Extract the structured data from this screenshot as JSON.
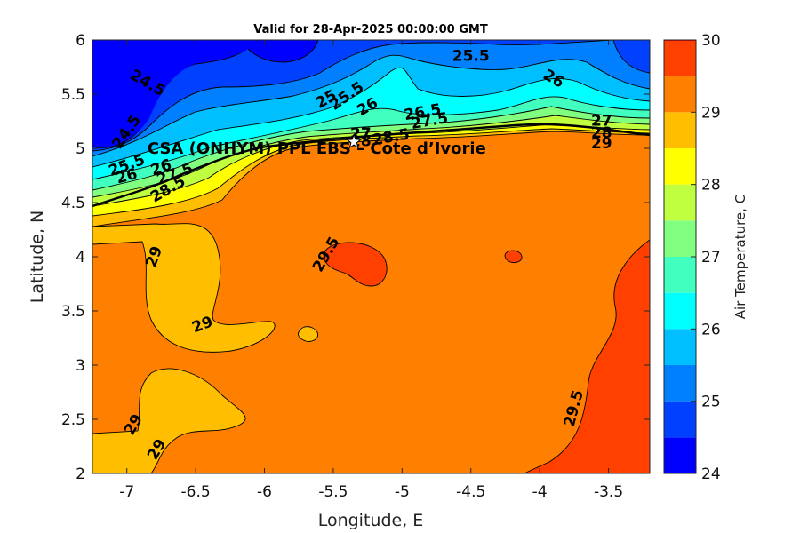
{
  "chart_data": {
    "type": "contour-map",
    "title": "Valid for 28-Apr-2025 00:00:00 GMT",
    "xlabel": "Longitude, E",
    "ylabel": "Latitude, N",
    "xlim": [
      -7.25,
      -3.2
    ],
    "ylim": [
      2,
      6
    ],
    "xticks": [
      -7,
      -6.5,
      -6,
      -5.5,
      -5,
      -4.5,
      -4,
      -3.5
    ],
    "yticks": [
      2,
      2.5,
      3,
      3.5,
      4,
      4.5,
      5,
      5.5,
      6
    ],
    "colorbar": {
      "label": "Air Temperature, C",
      "range": [
        24,
        30
      ],
      "ticks": [
        24,
        25,
        26,
        27,
        28,
        29,
        30
      ],
      "levels": [
        {
          "from": 24.0,
          "to": 24.5,
          "color": "#0000ff"
        },
        {
          "from": 24.5,
          "to": 25.0,
          "color": "#0040ff"
        },
        {
          "from": 25.0,
          "to": 25.5,
          "color": "#0080ff"
        },
        {
          "from": 25.5,
          "to": 26.0,
          "color": "#00bfff"
        },
        {
          "from": 26.0,
          "to": 26.5,
          "color": "#00ffff"
        },
        {
          "from": 26.5,
          "to": 27.0,
          "color": "#40ffbf"
        },
        {
          "from": 27.0,
          "to": 27.5,
          "color": "#80ff80"
        },
        {
          "from": 27.5,
          "to": 28.0,
          "color": "#bfff40"
        },
        {
          "from": 28.0,
          "to": 28.5,
          "color": "#ffff00"
        },
        {
          "from": 28.5,
          "to": 29.0,
          "color": "#ffbf00"
        },
        {
          "from": 29.0,
          "to": 29.5,
          "color": "#ff8000"
        },
        {
          "from": 29.5,
          "to": 30.0,
          "color": "#ff4000"
        }
      ],
      "top_color": "#ff0000"
    },
    "site": {
      "label": "CSA (ONHYM) PPL EBS  – Cote d’Ivorie",
      "lon": -5.35,
      "lat": 5.06
    },
    "contour_labels": [
      {
        "text": "24.5",
        "lon": -6.85,
        "lat": 5.6,
        "angle": 30
      },
      {
        "text": "24.5",
        "lon": -7.0,
        "lat": 5.15,
        "angle": -55
      },
      {
        "text": "25",
        "lon": -5.55,
        "lat": 5.45,
        "angle": -30
      },
      {
        "text": "25.5",
        "lon": -5.4,
        "lat": 5.48,
        "angle": -35
      },
      {
        "text": "25.5",
        "lon": -4.5,
        "lat": 5.85,
        "angle": 0
      },
      {
        "text": "26",
        "lon": -5.25,
        "lat": 5.38,
        "angle": -30
      },
      {
        "text": "26",
        "lon": -3.9,
        "lat": 5.64,
        "angle": 30
      },
      {
        "text": "25.5",
        "lon": -7.0,
        "lat": 4.84,
        "angle": -20
      },
      {
        "text": "26",
        "lon": -6.75,
        "lat": 4.82,
        "angle": -20
      },
      {
        "text": "26",
        "lon": -7.0,
        "lat": 4.74,
        "angle": -15
      },
      {
        "text": "27.5",
        "lon": -6.65,
        "lat": 4.76,
        "angle": -20
      },
      {
        "text": "28.5",
        "lon": -6.7,
        "lat": 4.62,
        "angle": -30
      },
      {
        "text": "26.5",
        "lon": -4.85,
        "lat": 5.33,
        "angle": -10
      },
      {
        "text": "27.5",
        "lon": -4.8,
        "lat": 5.25,
        "angle": -10
      },
      {
        "text": "27",
        "lon": -5.3,
        "lat": 5.13,
        "angle": 0
      },
      {
        "text": "28",
        "lon": -5.3,
        "lat": 5.06,
        "angle": 0
      },
      {
        "text": "28.5",
        "lon": -5.08,
        "lat": 5.1,
        "angle": -10
      },
      {
        "text": "27",
        "lon": -3.55,
        "lat": 5.25,
        "angle": 0
      },
      {
        "text": "28",
        "lon": -3.55,
        "lat": 5.14,
        "angle": 0
      },
      {
        "text": "29",
        "lon": -3.55,
        "lat": 5.04,
        "angle": 0
      },
      {
        "text": "29.5",
        "lon": -5.55,
        "lat": 4.02,
        "angle": -60
      },
      {
        "text": "29",
        "lon": -6.8,
        "lat": 4.0,
        "angle": -70
      },
      {
        "text": "29",
        "lon": -6.45,
        "lat": 3.37,
        "angle": -20
      },
      {
        "text": "29",
        "lon": -6.95,
        "lat": 2.45,
        "angle": -60
      },
      {
        "text": "29",
        "lon": -6.78,
        "lat": 2.22,
        "angle": -60
      },
      {
        "text": "29.5",
        "lon": -3.75,
        "lat": 2.6,
        "angle": -75
      }
    ]
  }
}
